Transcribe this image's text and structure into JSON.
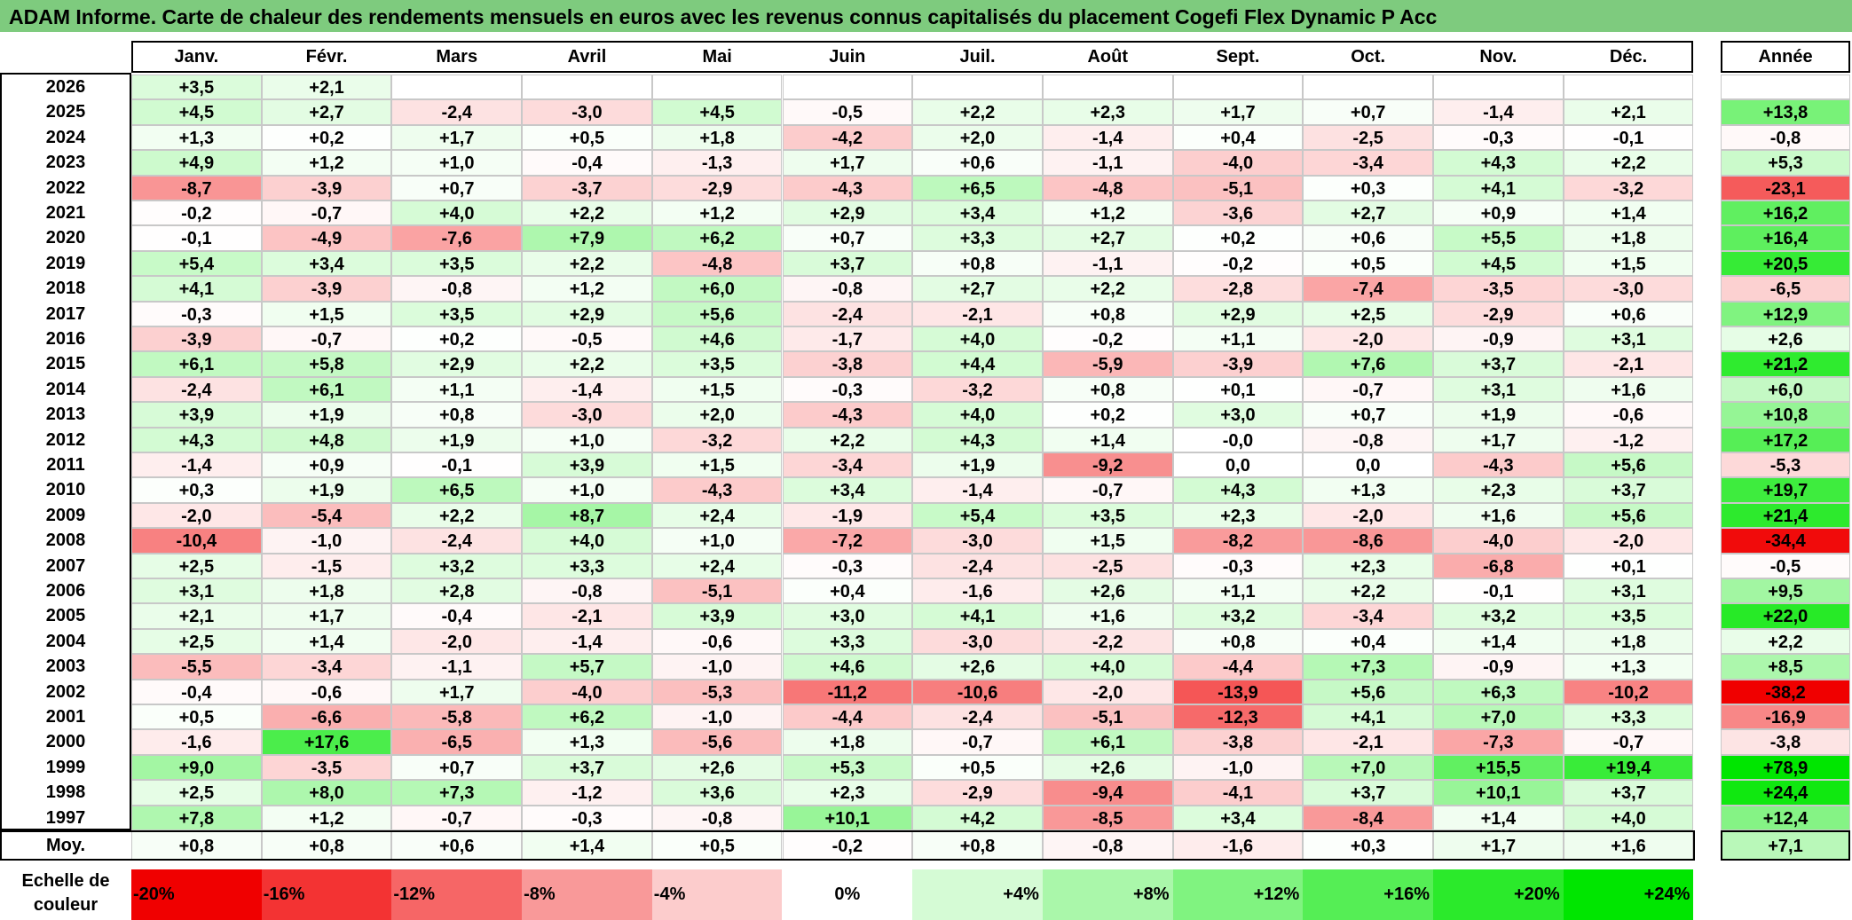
{
  "title": "ADAM Informe. Carte de chaleur des rendements mensuels en euros avec les revenus connus capitalisés du placement Cogefi Flex Dynamic P Acc",
  "chart_data": {
    "type": "heatmap",
    "columns": [
      "Janv.",
      "Févr.",
      "Mars",
      "Avril",
      "Mai",
      "Juin",
      "Juil.",
      "Août",
      "Sept.",
      "Oct.",
      "Nov.",
      "Déc."
    ],
    "annual_header": "Année",
    "rows": [
      {
        "year": "2026",
        "months": [
          "+3,5",
          "+2,1",
          "",
          "",
          "",
          "",
          "",
          "",
          "",
          "",
          "",
          ""
        ],
        "annual": ""
      },
      {
        "year": "2025",
        "months": [
          "+4,5",
          "+2,7",
          "-2,4",
          "-3,0",
          "+4,5",
          "-0,5",
          "+2,2",
          "+2,3",
          "+1,7",
          "+0,7",
          "-1,4",
          "+2,1"
        ],
        "annual": "+13,8"
      },
      {
        "year": "2024",
        "months": [
          "+1,3",
          "+0,2",
          "+1,7",
          "+0,5",
          "+1,8",
          "-4,2",
          "+2,0",
          "-1,4",
          "+0,4",
          "-2,5",
          "-0,3",
          "-0,1"
        ],
        "annual": "-0,8"
      },
      {
        "year": "2023",
        "months": [
          "+4,9",
          "+1,2",
          "+1,0",
          "-0,4",
          "-1,3",
          "+1,7",
          "+0,6",
          "-1,1",
          "-4,0",
          "-3,4",
          "+4,3",
          "+2,2"
        ],
        "annual": "+5,3"
      },
      {
        "year": "2022",
        "months": [
          "-8,7",
          "-3,9",
          "+0,7",
          "-3,7",
          "-2,9",
          "-4,3",
          "+6,5",
          "-4,8",
          "-5,1",
          "+0,3",
          "+4,1",
          "-3,2"
        ],
        "annual": "-23,1"
      },
      {
        "year": "2021",
        "months": [
          "-0,2",
          "-0,7",
          "+4,0",
          "+2,2",
          "+1,2",
          "+2,9",
          "+3,4",
          "+1,2",
          "-3,6",
          "+2,7",
          "+0,9",
          "+1,4"
        ],
        "annual": "+16,2"
      },
      {
        "year": "2020",
        "months": [
          "-0,1",
          "-4,9",
          "-7,6",
          "+7,9",
          "+6,2",
          "+0,7",
          "+3,3",
          "+2,7",
          "+0,2",
          "+0,6",
          "+5,5",
          "+1,8"
        ],
        "annual": "+16,4"
      },
      {
        "year": "2019",
        "months": [
          "+5,4",
          "+3,4",
          "+3,5",
          "+2,2",
          "-4,8",
          "+3,7",
          "+0,8",
          "-1,1",
          "-0,2",
          "+0,5",
          "+4,5",
          "+1,5"
        ],
        "annual": "+20,5"
      },
      {
        "year": "2018",
        "months": [
          "+4,1",
          "-3,9",
          "-0,8",
          "+1,2",
          "+6,0",
          "-0,8",
          "+2,7",
          "+2,2",
          "-2,8",
          "-7,4",
          "-3,5",
          "-3,0"
        ],
        "annual": "-6,5"
      },
      {
        "year": "2017",
        "months": [
          "-0,3",
          "+1,5",
          "+3,5",
          "+2,9",
          "+5,6",
          "-2,4",
          "-2,1",
          "+0,8",
          "+2,9",
          "+2,5",
          "-2,9",
          "+0,6"
        ],
        "annual": "+12,9"
      },
      {
        "year": "2016",
        "months": [
          "-3,9",
          "-0,7",
          "+0,2",
          "-0,5",
          "+4,6",
          "-1,7",
          "+4,0",
          "-0,2",
          "+1,1",
          "-2,0",
          "-0,9",
          "+3,1"
        ],
        "annual": "+2,6"
      },
      {
        "year": "2015",
        "months": [
          "+6,1",
          "+5,8",
          "+2,9",
          "+2,2",
          "+3,5",
          "-3,8",
          "+4,4",
          "-5,9",
          "-3,9",
          "+7,6",
          "+3,7",
          "-2,1"
        ],
        "annual": "+21,2"
      },
      {
        "year": "2014",
        "months": [
          "-2,4",
          "+6,1",
          "+1,1",
          "-1,4",
          "+1,5",
          "-0,3",
          "-3,2",
          "+0,8",
          "+0,1",
          "-0,7",
          "+3,1",
          "+1,6"
        ],
        "annual": "+6,0"
      },
      {
        "year": "2013",
        "months": [
          "+3,9",
          "+1,9",
          "+0,8",
          "-3,0",
          "+2,0",
          "-4,3",
          "+4,0",
          "+0,2",
          "+3,0",
          "+0,7",
          "+1,9",
          "-0,6"
        ],
        "annual": "+10,8"
      },
      {
        "year": "2012",
        "months": [
          "+4,3",
          "+4,8",
          "+1,9",
          "+1,0",
          "-3,2",
          "+2,2",
          "+4,3",
          "+1,4",
          "-0,0",
          "-0,8",
          "+1,7",
          "-1,2"
        ],
        "annual": "+17,2"
      },
      {
        "year": "2011",
        "months": [
          "-1,4",
          "+0,9",
          "-0,1",
          "+3,9",
          "+1,5",
          "-3,4",
          "+1,9",
          "-9,2",
          "0,0",
          "0,0",
          "-4,3",
          "+5,6"
        ],
        "annual": "-5,3"
      },
      {
        "year": "2010",
        "months": [
          "+0,3",
          "+1,9",
          "+6,5",
          "+1,0",
          "-4,3",
          "+3,4",
          "-1,4",
          "-0,7",
          "+4,3",
          "+1,3",
          "+2,3",
          "+3,7"
        ],
        "annual": "+19,7"
      },
      {
        "year": "2009",
        "months": [
          "-2,0",
          "-5,4",
          "+2,2",
          "+8,7",
          "+2,4",
          "-1,9",
          "+5,4",
          "+3,5",
          "+2,3",
          "-2,0",
          "+1,6",
          "+5,6"
        ],
        "annual": "+21,4"
      },
      {
        "year": "2008",
        "months": [
          "-10,4",
          "-1,0",
          "-2,4",
          "+4,0",
          "+1,0",
          "-7,2",
          "-3,0",
          "+1,5",
          "-8,2",
          "-8,6",
          "-4,0",
          "-2,0"
        ],
        "annual": "-34,4"
      },
      {
        "year": "2007",
        "months": [
          "+2,5",
          "-1,5",
          "+3,2",
          "+3,3",
          "+2,4",
          "-0,3",
          "-2,4",
          "-2,5",
          "-0,3",
          "+2,3",
          "-6,8",
          "+0,1"
        ],
        "annual": "-0,5"
      },
      {
        "year": "2006",
        "months": [
          "+3,1",
          "+1,8",
          "+2,8",
          "-0,8",
          "-5,1",
          "+0,4",
          "-1,6",
          "+2,6",
          "+1,1",
          "+2,2",
          "-0,1",
          "+3,1"
        ],
        "annual": "+9,5"
      },
      {
        "year": "2005",
        "months": [
          "+2,1",
          "+1,7",
          "-0,4",
          "-2,1",
          "+3,9",
          "+3,0",
          "+4,1",
          "+1,6",
          "+3,2",
          "-3,4",
          "+3,2",
          "+3,5"
        ],
        "annual": "+22,0"
      },
      {
        "year": "2004",
        "months": [
          "+2,5",
          "+1,4",
          "-2,0",
          "-1,4",
          "-0,6",
          "+3,3",
          "-3,0",
          "-2,2",
          "+0,8",
          "+0,4",
          "+1,4",
          "+1,8"
        ],
        "annual": "+2,2"
      },
      {
        "year": "2003",
        "months": [
          "-5,5",
          "-3,4",
          "-1,1",
          "+5,7",
          "-1,0",
          "+4,6",
          "+2,6",
          "+4,0",
          "-4,4",
          "+7,3",
          "-0,9",
          "+1,3"
        ],
        "annual": "+8,5"
      },
      {
        "year": "2002",
        "months": [
          "-0,4",
          "-0,6",
          "+1,7",
          "-4,0",
          "-5,3",
          "-11,2",
          "-10,6",
          "-2,0",
          "-13,9",
          "+5,6",
          "+6,3",
          "-10,2"
        ],
        "annual": "-38,2"
      },
      {
        "year": "2001",
        "months": [
          "+0,5",
          "-6,6",
          "-5,8",
          "+6,2",
          "-1,0",
          "-4,4",
          "-2,4",
          "-5,1",
          "-12,3",
          "+4,1",
          "+7,0",
          "+3,3"
        ],
        "annual": "-16,9"
      },
      {
        "year": "2000",
        "months": [
          "-1,6",
          "+17,6",
          "-6,5",
          "+1,3",
          "-5,6",
          "+1,8",
          "-0,7",
          "+6,1",
          "-3,8",
          "-2,1",
          "-7,3",
          "-0,7"
        ],
        "annual": "-3,8"
      },
      {
        "year": "1999",
        "months": [
          "+9,0",
          "-3,5",
          "+0,7",
          "+3,7",
          "+2,6",
          "+5,3",
          "+0,5",
          "+2,6",
          "-1,0",
          "+7,0",
          "+15,5",
          "+19,4"
        ],
        "annual": "+78,9"
      },
      {
        "year": "1998",
        "months": [
          "+2,5",
          "+8,0",
          "+7,3",
          "-1,2",
          "+3,6",
          "+2,3",
          "-2,9",
          "-9,4",
          "-4,1",
          "+3,7",
          "+10,1",
          "+3,7"
        ],
        "annual": "+24,4"
      },
      {
        "year": "1997",
        "months": [
          "+7,8",
          "+1,2",
          "-0,7",
          "-0,3",
          "-0,8",
          "+10,1",
          "+4,2",
          "-8,5",
          "+3,4",
          "-8,4",
          "+1,4",
          "+4,0"
        ],
        "annual": "+12,4"
      }
    ],
    "average": {
      "label": "Moy.",
      "months": [
        "+0,8",
        "+0,8",
        "+0,6",
        "+1,4",
        "+0,5",
        "-0,2",
        "+0,8",
        "-0,8",
        "-1,6",
        "+0,3",
        "+1,7",
        "+1,6"
      ],
      "annual": "+7,1"
    },
    "legend": {
      "label_line1": "Echelle de",
      "label_line2": "couleur",
      "stops": [
        "-20%",
        "-16%",
        "-12%",
        "-8%",
        "-4%",
        "0%",
        "+4%",
        "+8%",
        "+12%",
        "+16%",
        "+20%",
        "+24%"
      ]
    }
  }
}
